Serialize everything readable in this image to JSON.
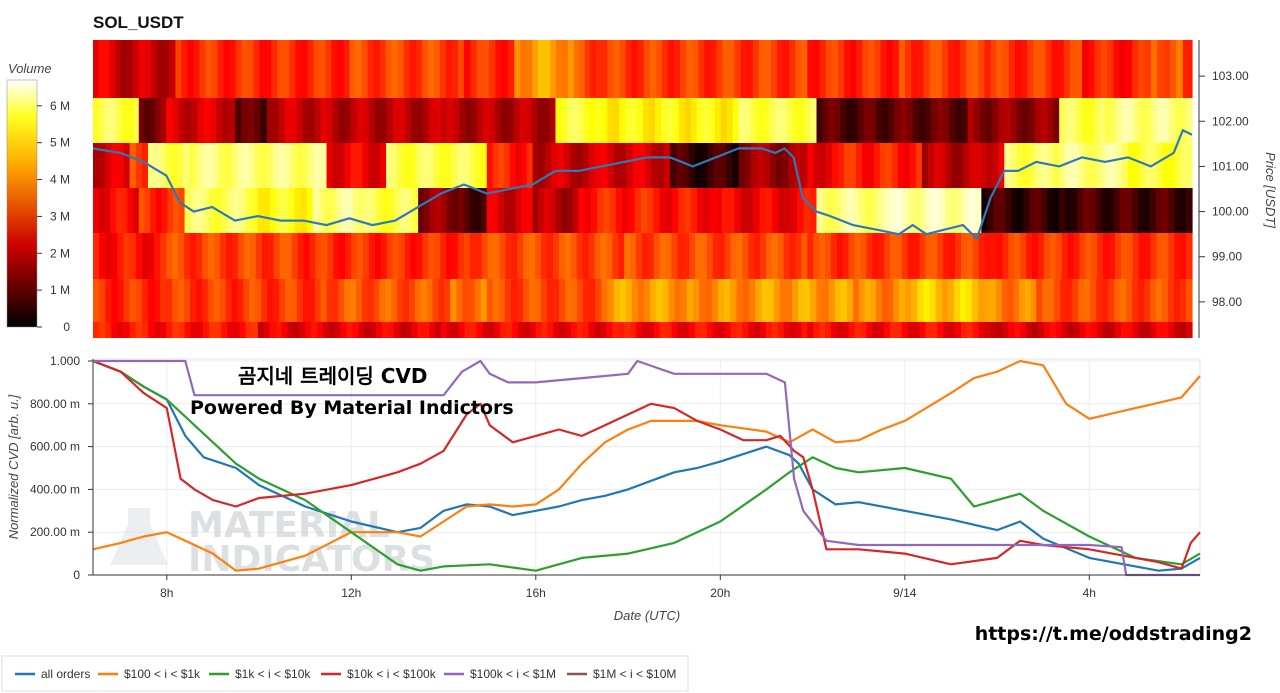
{
  "chart_data": [
    {
      "type": "heatmap",
      "title": "SOL_USDT",
      "colorbar": {
        "label": "Volume",
        "ticks": [
          "0",
          "1 M",
          "2 M",
          "3 M",
          "4 M",
          "5 M",
          "6 M"
        ],
        "range": [
          0,
          6700000
        ],
        "colormap": "hot"
      },
      "y_axis": {
        "label": "Price [USDT]",
        "side": "right",
        "range": [
          97.2,
          103.8
        ],
        "ticks": [
          "98.00",
          "99.00",
          "100.00",
          "101.00",
          "102.00",
          "103.00"
        ]
      },
      "x_range": [
        6.4,
        30.4
      ],
      "price_levels": [
        103.3,
        102.3,
        101.3,
        100.3,
        99.3,
        98.3,
        97.4
      ],
      "intensity_by_level": {
        "103.3": {
          "breaks": [
            6.4,
            7.0,
            8.2,
            12.0,
            14.5,
            15.6,
            16.9,
            17.5,
            22.0,
            24.0,
            26.0,
            28.0,
            29.5,
            30.2,
            30.4
          ],
          "values": [
            0.32,
            0.28,
            0.42,
            0.45,
            0.42,
            0.58,
            0.46,
            0.44,
            0.42,
            0.44,
            0.43,
            0.4,
            0.5,
            0.35
          ]
        },
        "102.3": {
          "breaks": [
            6.4,
            7.4,
            8.0,
            9.5,
            10.2,
            11.5,
            14.0,
            16.5,
            17.5,
            20.5,
            22.2,
            23.5,
            25.5,
            27.5,
            28.5,
            30.4
          ],
          "values": [
            0.8,
            0.18,
            0.3,
            0.12,
            0.28,
            0.26,
            0.25,
            0.78,
            0.72,
            0.8,
            0.12,
            0.14,
            0.2,
            0.8,
            0.86
          ]
        },
        "101.3": {
          "breaks": [
            6.4,
            7.2,
            7.6,
            8.5,
            11.5,
            12.8,
            15.0,
            16.0,
            17.5,
            19.0,
            20.5,
            22.0,
            22.8,
            24.5,
            25.8,
            26.3,
            27.5,
            29.0,
            30.4
          ],
          "values": [
            0.3,
            0.46,
            0.82,
            0.85,
            0.34,
            0.8,
            0.4,
            0.28,
            0.3,
            0.08,
            0.22,
            0.34,
            0.4,
            0.26,
            0.32,
            0.82,
            0.86,
            0.78
          ]
        },
        "100.3": {
          "breaks": [
            6.4,
            7.4,
            8.4,
            10.0,
            11.2,
            12.2,
            13.5,
            14.5,
            15.0,
            16.0,
            17.0,
            18.5,
            20.0,
            21.5,
            22.2,
            23.8,
            25.8,
            27.5,
            30.4
          ],
          "values": [
            0.36,
            0.42,
            0.82,
            0.74,
            0.86,
            0.8,
            0.2,
            0.12,
            0.3,
            0.26,
            0.4,
            0.38,
            0.34,
            0.36,
            0.86,
            0.9,
            0.08,
            0.1
          ]
        },
        "99.3": {
          "breaks": [
            6.4,
            8.0,
            11.0,
            14.5,
            18.0,
            22.0,
            26.0,
            30.4
          ],
          "values": [
            0.38,
            0.45,
            0.42,
            0.46,
            0.46,
            0.44,
            0.43
          ]
        },
        "98.3": {
          "breaks": [
            6.4,
            8.0,
            11.5,
            14.2,
            15.0,
            17.5,
            19.5,
            21.0,
            23.0,
            24.0,
            26.0,
            27.0,
            30.4
          ],
          "values": [
            0.42,
            0.44,
            0.48,
            0.52,
            0.46,
            0.58,
            0.56,
            0.58,
            0.55,
            0.64,
            0.54,
            0.46
          ]
        },
        "97.4": {
          "breaks": [
            6.4,
            10.0,
            14.0,
            18.0,
            22.0,
            26.0,
            30.4
          ],
          "values": [
            0.38,
            0.33,
            0.35,
            0.36,
            0.36,
            0.32
          ]
        }
      },
      "price_line": {
        "x": [
          6.4,
          7.0,
          7.5,
          8.0,
          8.3,
          8.6,
          9.0,
          9.5,
          10.0,
          10.5,
          11.0,
          11.5,
          12.0,
          12.5,
          13.0,
          13.5,
          14.0,
          14.5,
          15.0,
          15.5,
          16.0,
          16.5,
          17.0,
          17.5,
          18.0,
          18.5,
          19.0,
          19.5,
          20.0,
          20.5,
          21.0,
          21.3,
          21.5,
          21.7,
          21.9,
          22.2,
          22.5,
          23.0,
          23.5,
          24.0,
          24.3,
          24.6,
          25.0,
          25.4,
          25.7,
          26.0,
          26.3,
          26.6,
          27.0,
          27.5,
          28.0,
          28.5,
          29.0,
          29.5,
          30.0,
          30.2,
          30.4
        ],
        "y": [
          101.4,
          101.3,
          101.1,
          100.8,
          100.2,
          100.0,
          100.1,
          99.8,
          99.9,
          99.8,
          99.8,
          99.7,
          99.85,
          99.7,
          99.8,
          100.1,
          100.4,
          100.6,
          100.4,
          100.5,
          100.6,
          100.9,
          100.9,
          101.0,
          101.1,
          101.2,
          101.2,
          101.0,
          101.2,
          101.4,
          101.4,
          101.3,
          101.4,
          101.2,
          100.3,
          100.0,
          99.9,
          99.7,
          99.6,
          99.5,
          99.7,
          99.5,
          99.6,
          99.7,
          99.4,
          100.3,
          100.9,
          100.9,
          101.1,
          101.0,
          101.2,
          101.1,
          101.2,
          101.0,
          101.3,
          101.8,
          101.7
        ]
      }
    },
    {
      "type": "line",
      "xlabel": "Date (UTC)",
      "ylabel": "Normalized CVD [arb. u.]",
      "x_ticks": [
        "8h",
        "12h",
        "16h",
        "20h",
        "9/14",
        "4h"
      ],
      "x_tick_positions": [
        8,
        12,
        16,
        20,
        24,
        28
      ],
      "y_ticks": [
        "0",
        "200.00 m",
        "400.00 m",
        "600.00 m",
        "800.00 m",
        "1.000"
      ],
      "ylim": [
        0,
        1
      ],
      "xlim": [
        6.4,
        30.4
      ],
      "grid": true,
      "legend_position": "bottom",
      "series": [
        {
          "name": "all orders",
          "color": "#1f77b4",
          "x": [
            6.4,
            7.0,
            7.5,
            8.0,
            8.4,
            8.8,
            9.5,
            10.0,
            11.0,
            12.0,
            13.0,
            13.5,
            14.0,
            14.5,
            15.0,
            15.5,
            16.0,
            16.5,
            17.0,
            17.5,
            18.0,
            18.5,
            19.0,
            19.5,
            20.0,
            21.0,
            21.5,
            21.7,
            22.0,
            22.5,
            23.0,
            24.0,
            25.0,
            26.0,
            26.5,
            27.0,
            28.0,
            28.5,
            29.0,
            29.5,
            30.0,
            30.4
          ],
          "y": [
            1.0,
            0.95,
            0.88,
            0.82,
            0.65,
            0.55,
            0.5,
            0.42,
            0.32,
            0.25,
            0.2,
            0.22,
            0.3,
            0.33,
            0.32,
            0.28,
            0.3,
            0.32,
            0.35,
            0.37,
            0.4,
            0.44,
            0.48,
            0.5,
            0.53,
            0.6,
            0.56,
            0.52,
            0.4,
            0.33,
            0.34,
            0.3,
            0.26,
            0.21,
            0.25,
            0.17,
            0.08,
            0.06,
            0.04,
            0.02,
            0.03,
            0.08
          ]
        },
        {
          "name": "$100 < i < $1k",
          "color": "#ff7f0e",
          "x": [
            6.4,
            7.0,
            7.5,
            8.0,
            8.5,
            9.0,
            9.5,
            10.0,
            11.0,
            12.0,
            13.0,
            13.5,
            14.0,
            14.5,
            15.0,
            15.5,
            16.0,
            16.5,
            17.0,
            17.5,
            18.0,
            18.5,
            19.0,
            19.5,
            20.0,
            21.0,
            21.5,
            22.0,
            22.5,
            23.0,
            23.5,
            24.0,
            25.0,
            25.5,
            26.0,
            26.5,
            27.0,
            27.5,
            28.0,
            29.0,
            30.0,
            30.4
          ],
          "y": [
            0.12,
            0.15,
            0.18,
            0.2,
            0.15,
            0.1,
            0.02,
            0.03,
            0.09,
            0.2,
            0.2,
            0.18,
            0.25,
            0.32,
            0.33,
            0.32,
            0.33,
            0.4,
            0.52,
            0.62,
            0.68,
            0.72,
            0.72,
            0.72,
            0.7,
            0.67,
            0.62,
            0.68,
            0.62,
            0.63,
            0.68,
            0.72,
            0.85,
            0.92,
            0.95,
            1.0,
            0.98,
            0.8,
            0.73,
            0.78,
            0.83,
            0.93
          ]
        },
        {
          "name": "$1k < i < $10k",
          "color": "#2ca02c",
          "x": [
            6.4,
            7.0,
            7.5,
            8.0,
            8.5,
            9.0,
            9.5,
            10.0,
            11.0,
            12.0,
            13.0,
            13.5,
            14.0,
            15.0,
            16.0,
            17.0,
            18.0,
            19.0,
            20.0,
            21.0,
            21.5,
            22.0,
            22.5,
            23.0,
            24.0,
            25.0,
            25.5,
            26.0,
            26.5,
            27.0,
            28.0,
            29.0,
            30.0,
            30.4
          ],
          "y": [
            1.0,
            0.95,
            0.88,
            0.82,
            0.72,
            0.62,
            0.52,
            0.45,
            0.35,
            0.2,
            0.05,
            0.02,
            0.04,
            0.05,
            0.02,
            0.08,
            0.1,
            0.15,
            0.25,
            0.4,
            0.48,
            0.55,
            0.5,
            0.48,
            0.5,
            0.45,
            0.32,
            0.35,
            0.38,
            0.3,
            0.18,
            0.08,
            0.05,
            0.1
          ]
        },
        {
          "name": "$10k < i < $100k",
          "color": "#d62728",
          "x": [
            6.4,
            7.0,
            7.5,
            8.0,
            8.3,
            8.6,
            9.0,
            9.5,
            10.0,
            11.0,
            12.0,
            12.5,
            13.0,
            13.5,
            14.0,
            14.5,
            14.8,
            15.0,
            15.5,
            16.0,
            16.5,
            17.0,
            17.5,
            18.0,
            18.5,
            19.0,
            19.5,
            20.0,
            20.5,
            21.0,
            21.3,
            21.6,
            21.8,
            22.0,
            22.3,
            23.0,
            24.0,
            25.0,
            26.0,
            26.5,
            27.0,
            28.0,
            29.0,
            29.5,
            30.0,
            30.2,
            30.4
          ],
          "y": [
            1.0,
            0.95,
            0.85,
            0.78,
            0.45,
            0.4,
            0.35,
            0.32,
            0.36,
            0.38,
            0.42,
            0.45,
            0.48,
            0.52,
            0.58,
            0.75,
            0.8,
            0.7,
            0.62,
            0.65,
            0.68,
            0.65,
            0.7,
            0.75,
            0.8,
            0.78,
            0.72,
            0.68,
            0.63,
            0.63,
            0.65,
            0.58,
            0.55,
            0.4,
            0.12,
            0.12,
            0.1,
            0.05,
            0.08,
            0.16,
            0.14,
            0.12,
            0.08,
            0.06,
            0.03,
            0.15,
            0.2
          ]
        },
        {
          "name": "$100k < i < $1M",
          "color": "#9467bd",
          "x": [
            6.4,
            7.5,
            8.4,
            8.6,
            9.0,
            10.0,
            12.0,
            14.0,
            14.4,
            14.8,
            15.0,
            15.4,
            16.0,
            17.0,
            18.0,
            18.2,
            19.0,
            20.0,
            21.0,
            21.4,
            21.6,
            21.8,
            22.3,
            23.0,
            24.0,
            26.0,
            27.0,
            28.0,
            28.7,
            28.8,
            30.0,
            30.4
          ],
          "y": [
            1.0,
            1.0,
            1.0,
            0.84,
            0.84,
            0.84,
            0.84,
            0.84,
            0.95,
            1.0,
            0.94,
            0.9,
            0.9,
            0.92,
            0.94,
            1.0,
            0.94,
            0.94,
            0.94,
            0.9,
            0.45,
            0.3,
            0.16,
            0.14,
            0.14,
            0.14,
            0.14,
            0.14,
            0.13,
            0.0,
            0.0,
            0.0
          ]
        },
        {
          "name": "$1M < i < $10M",
          "color": "#8c564b",
          "x": [],
          "y": []
        }
      ]
    }
  ],
  "overlay": {
    "title_text": "곰지네 트레이딩 CVD",
    "subtitle_text": "Powered By Material Indictors",
    "url_text": "https://t.me/oddstrading2"
  },
  "watermark": {
    "line1": "MATERIAL",
    "line2": "INDICATORS"
  }
}
